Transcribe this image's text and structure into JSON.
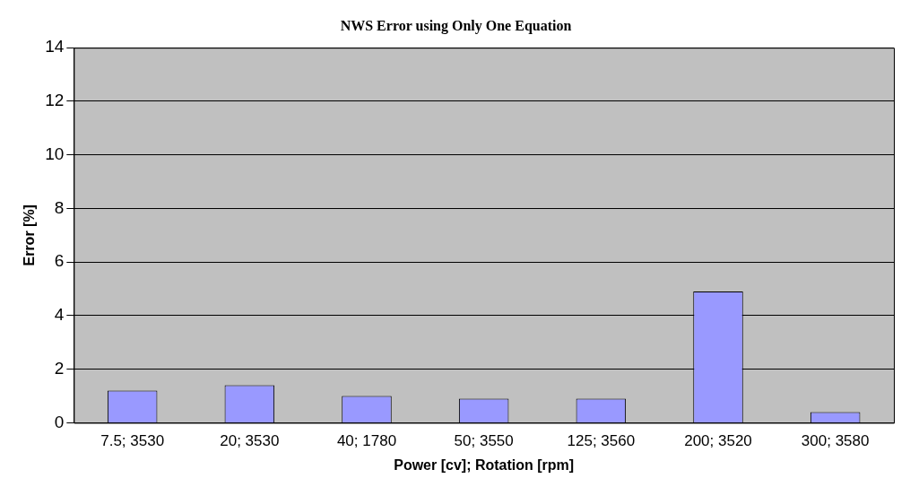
{
  "chart_data": {
    "type": "bar",
    "title": "NWS Error using Only One Equation",
    "xlabel": "Power [cv]; Rotation [rpm]",
    "ylabel": "Error [%]",
    "categories": [
      "7.5; 3530",
      "20; 3530",
      "40; 1780",
      "50; 3550",
      "125; 3560",
      "200; 3520",
      "300; 3580"
    ],
    "values": [
      1.2,
      1.4,
      1.0,
      0.9,
      0.9,
      4.9,
      0.4
    ],
    "color": "#9999ff",
    "ylim": [
      0,
      14
    ],
    "yticks": [
      0,
      2,
      4,
      6,
      8,
      10,
      12,
      14
    ],
    "grid": "y",
    "legend": false
  }
}
